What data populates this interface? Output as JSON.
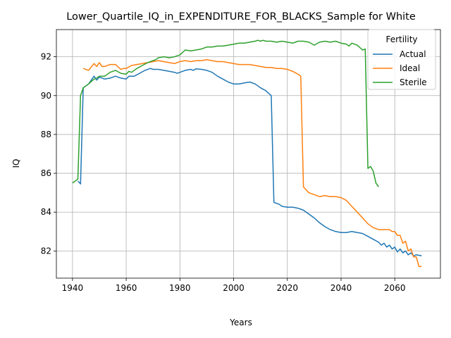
{
  "chart_data": {
    "type": "line",
    "title": "Lower_Quartile_IQ_in_EXPENDITURE_FOR_BLACKS_Sample for White",
    "xlabel": "Years",
    "ylabel": "IQ",
    "xlim": [
      1934,
      2077
    ],
    "ylim": [
      80.6,
      93.4
    ],
    "xticks": [
      1940,
      1960,
      1980,
      2000,
      2020,
      2040,
      2060
    ],
    "yticks": [
      82,
      84,
      86,
      88,
      90,
      92
    ],
    "grid": true,
    "legend": {
      "title": "Fertility",
      "placement": "top-right"
    },
    "series": [
      {
        "name": "Actual",
        "color": "#1f77b4",
        "x": [
          1942,
          1943,
          1944,
          1946,
          1948,
          1949,
          1950,
          1952,
          1954,
          1956,
          1958,
          1960,
          1961,
          1963,
          1965,
          1967,
          1969,
          1970,
          1972,
          1974,
          1976,
          1978,
          1979,
          1980,
          1982,
          1984,
          1985,
          1986,
          1988,
          1990,
          1992,
          1994,
          1996,
          1998,
          2000,
          2002,
          2004,
          2006,
          2008,
          2010,
          2012,
          2014,
          2015,
          2016,
          2017,
          2018,
          2020,
          2022,
          2024,
          2026,
          2028,
          2030,
          2032,
          2034,
          2036,
          2038,
          2040,
          2042,
          2044,
          2046,
          2048,
          2050,
          2052,
          2054,
          2055,
          2056,
          2057,
          2058,
          2059,
          2060,
          2061,
          2062,
          2063,
          2064,
          2065,
          2066,
          2067,
          2068,
          2070
        ],
        "values": [
          85.6,
          85.45,
          90.4,
          90.6,
          91.0,
          90.8,
          90.95,
          90.85,
          90.9,
          91.0,
          90.9,
          90.85,
          91.0,
          91.0,
          91.15,
          91.3,
          91.4,
          91.35,
          91.35,
          91.3,
          91.25,
          91.2,
          91.15,
          91.2,
          91.3,
          91.35,
          91.3,
          91.38,
          91.35,
          91.3,
          91.2,
          91.0,
          90.85,
          90.7,
          90.6,
          90.6,
          90.65,
          90.7,
          90.6,
          90.4,
          90.25,
          90.0,
          84.5,
          84.45,
          84.4,
          84.3,
          84.25,
          84.25,
          84.2,
          84.1,
          83.9,
          83.7,
          83.45,
          83.25,
          83.1,
          83.0,
          82.95,
          82.95,
          83.0,
          82.95,
          82.9,
          82.75,
          82.6,
          82.45,
          82.3,
          82.4,
          82.2,
          82.3,
          82.1,
          82.2,
          81.95,
          82.1,
          81.9,
          82.0,
          81.8,
          81.9,
          81.75,
          81.8,
          81.75
        ]
      },
      {
        "name": "Ideal",
        "color": "#ff7f0e",
        "x": [
          1944,
          1946,
          1948,
          1949,
          1950,
          1951,
          1952,
          1954,
          1956,
          1958,
          1959,
          1960,
          1962,
          1964,
          1966,
          1968,
          1970,
          1972,
          1974,
          1976,
          1978,
          1980,
          1982,
          1984,
          1986,
          1988,
          1990,
          1992,
          1994,
          1996,
          1998,
          2000,
          2002,
          2004,
          2006,
          2008,
          2010,
          2012,
          2014,
          2016,
          2018,
          2020,
          2022,
          2024,
          2025,
          2026,
          2028,
          2030,
          2032,
          2034,
          2036,
          2038,
          2040,
          2042,
          2044,
          2046,
          2048,
          2050,
          2052,
          2054,
          2056,
          2058,
          2059,
          2060,
          2061,
          2062,
          2063,
          2064,
          2065,
          2066,
          2067,
          2068,
          2069,
          2070
        ],
        "values": [
          91.4,
          91.3,
          91.65,
          91.5,
          91.7,
          91.5,
          91.5,
          91.6,
          91.6,
          91.35,
          91.4,
          91.4,
          91.55,
          91.6,
          91.65,
          91.7,
          91.75,
          91.8,
          91.75,
          91.7,
          91.65,
          91.75,
          91.8,
          91.75,
          91.8,
          91.8,
          91.85,
          91.8,
          91.75,
          91.75,
          91.7,
          91.65,
          91.6,
          91.6,
          91.6,
          91.55,
          91.5,
          91.45,
          91.45,
          91.4,
          91.4,
          91.35,
          91.25,
          91.1,
          91.0,
          85.3,
          85.0,
          84.9,
          84.8,
          84.85,
          84.8,
          84.8,
          84.75,
          84.6,
          84.3,
          84.0,
          83.7,
          83.4,
          83.2,
          83.1,
          83.1,
          83.1,
          83.0,
          83.0,
          82.8,
          82.8,
          82.4,
          82.5,
          82.0,
          82.1,
          81.7,
          81.7,
          81.2,
          81.2
        ]
      },
      {
        "name": "Sterile",
        "color": "#2ca02c",
        "x": [
          1940,
          1942,
          1943,
          1944,
          1946,
          1948,
          1949,
          1950,
          1952,
          1954,
          1956,
          1958,
          1960,
          1961,
          1962,
          1964,
          1966,
          1968,
          1970,
          1971,
          1972,
          1974,
          1976,
          1978,
          1980,
          1982,
          1984,
          1986,
          1988,
          1990,
          1992,
          1994,
          1996,
          1998,
          2000,
          2002,
          2004,
          2006,
          2008,
          2009,
          2010,
          2011,
          2012,
          2014,
          2016,
          2018,
          2020,
          2022,
          2024,
          2026,
          2028,
          2030,
          2032,
          2034,
          2036,
          2038,
          2040,
          2042,
          2043,
          2044,
          2046,
          2048,
          2049,
          2050,
          2051,
          2052,
          2053,
          2054
        ],
        "values": [
          85.5,
          85.7,
          90.0,
          90.4,
          90.6,
          90.85,
          90.9,
          91.0,
          91.0,
          91.2,
          91.3,
          91.15,
          91.1,
          91.25,
          91.2,
          91.4,
          91.55,
          91.7,
          91.8,
          91.85,
          91.95,
          92.0,
          91.95,
          92.0,
          92.1,
          92.35,
          92.3,
          92.35,
          92.4,
          92.5,
          92.5,
          92.55,
          92.55,
          92.6,
          92.65,
          92.7,
          92.7,
          92.75,
          92.8,
          92.85,
          92.8,
          92.85,
          92.8,
          92.8,
          92.75,
          92.8,
          92.75,
          92.7,
          92.8,
          92.8,
          92.75,
          92.6,
          92.75,
          92.8,
          92.75,
          92.8,
          92.7,
          92.65,
          92.55,
          92.7,
          92.6,
          92.35,
          92.4,
          86.25,
          86.35,
          86.1,
          85.5,
          85.3
        ]
      }
    ]
  }
}
